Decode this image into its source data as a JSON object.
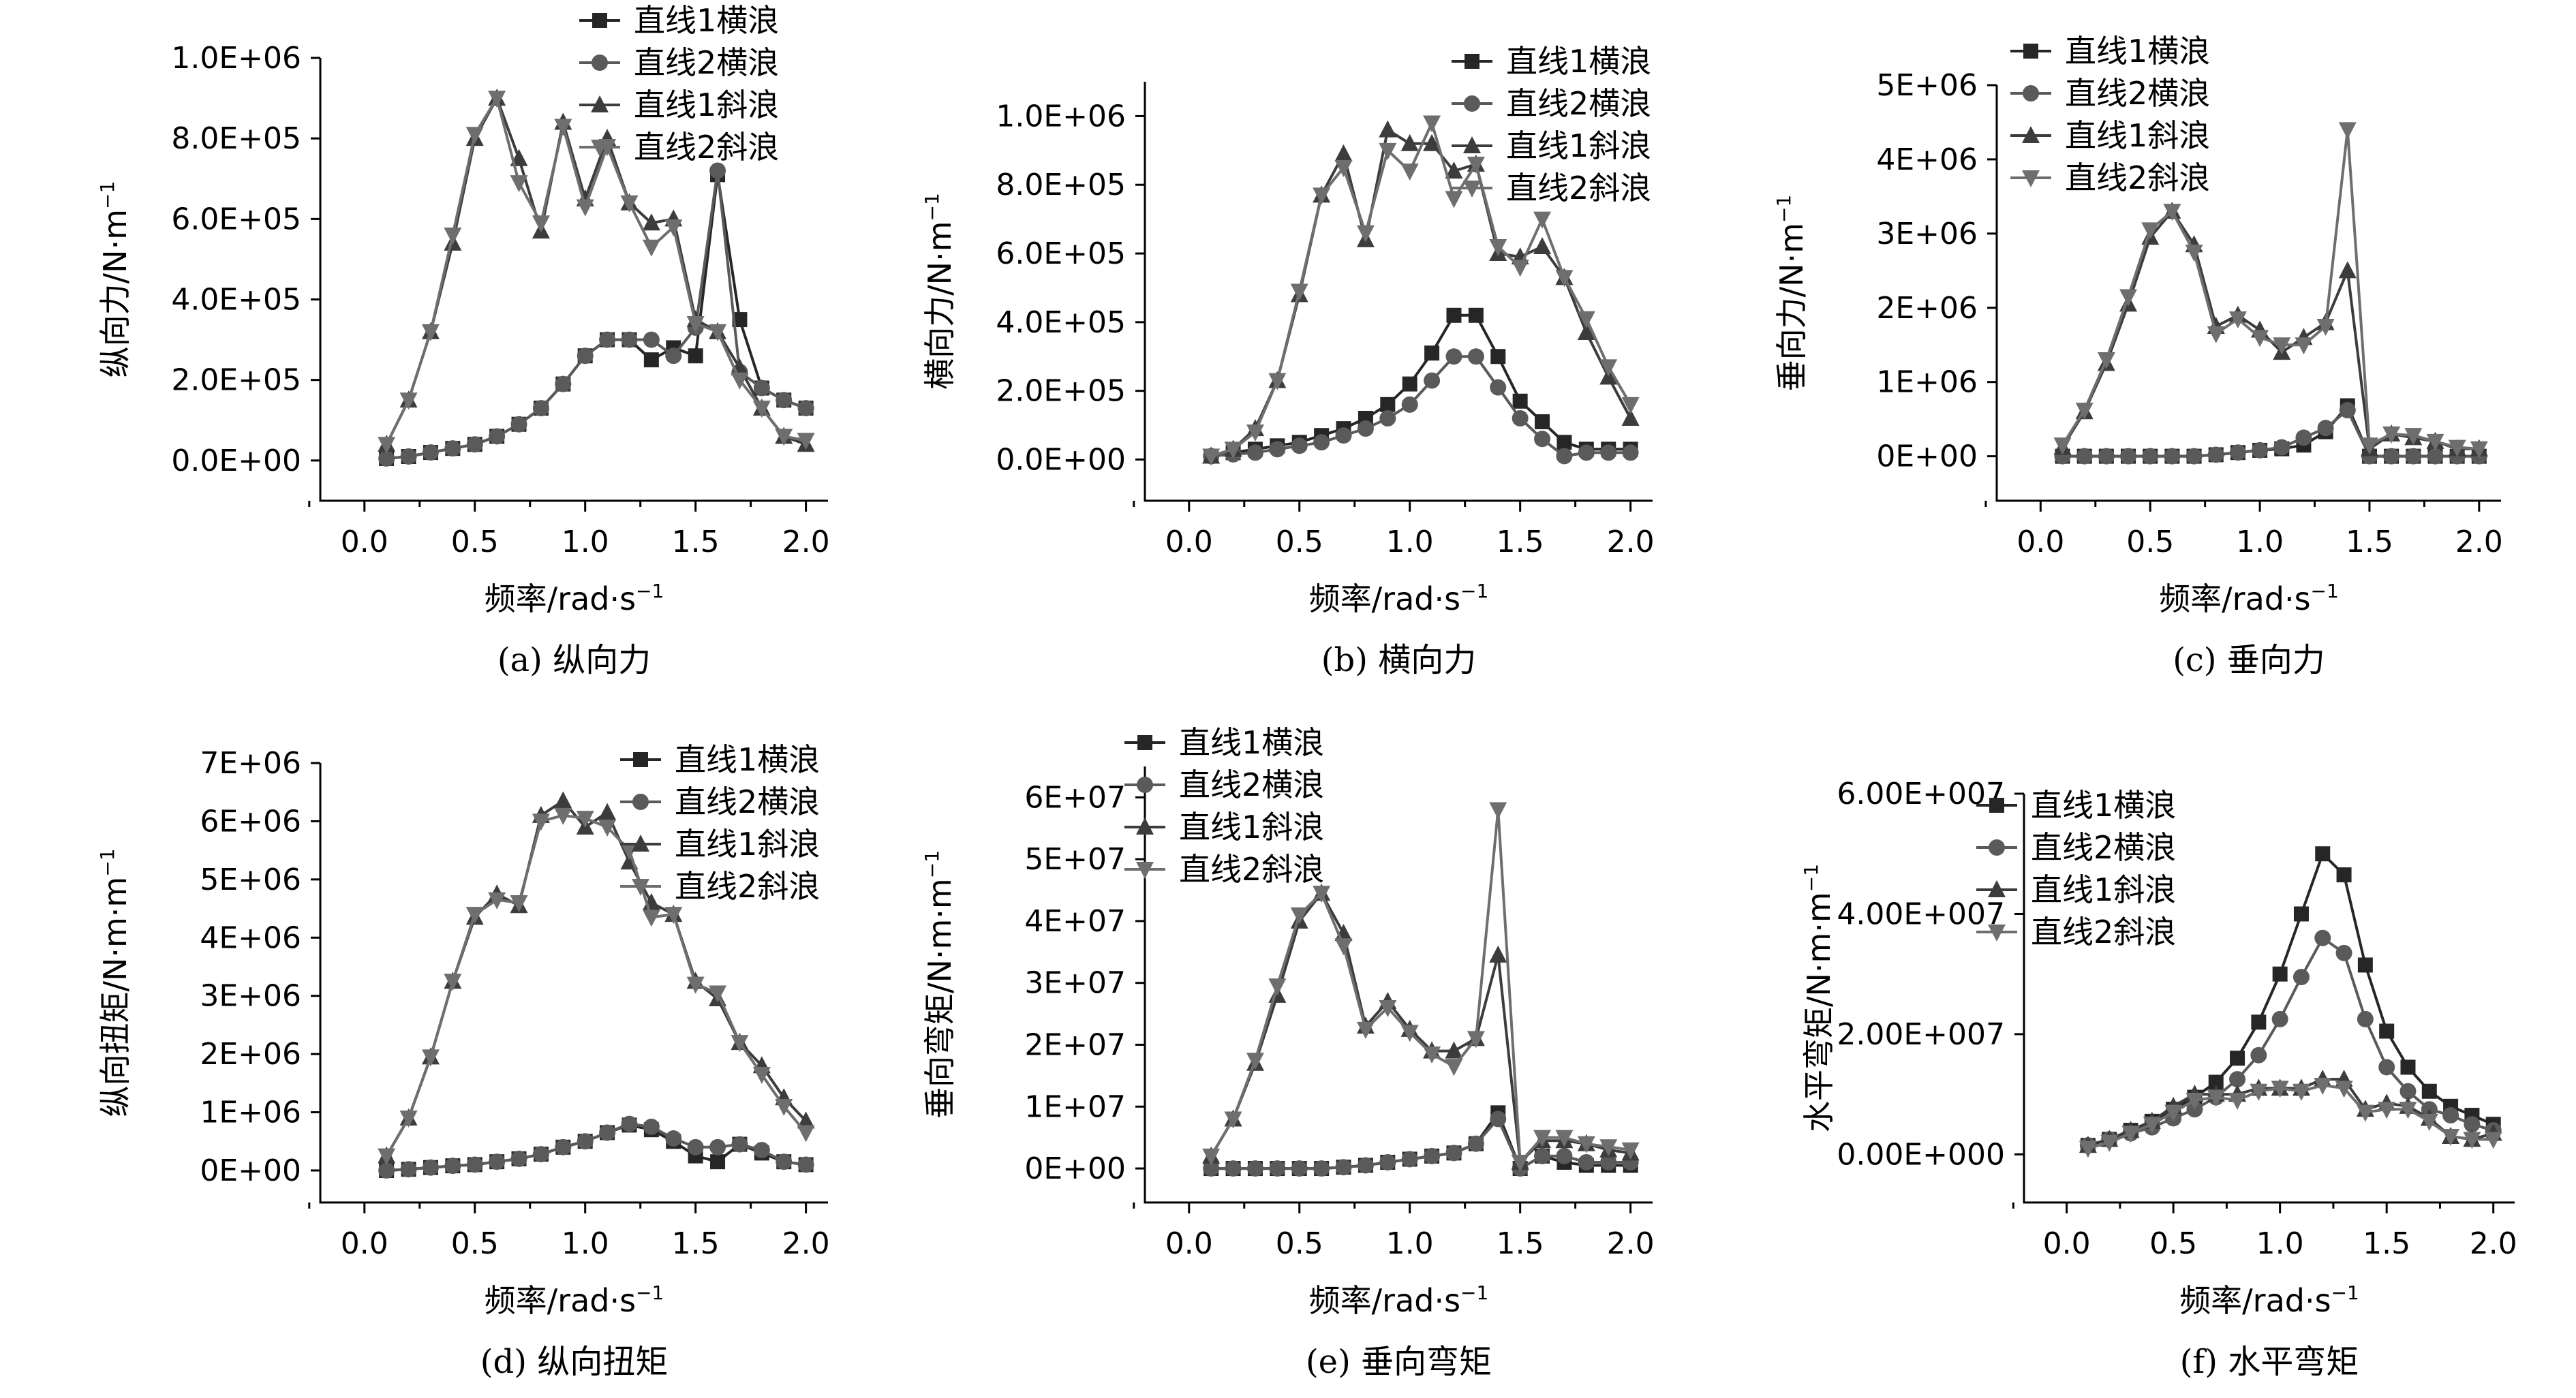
{
  "figure": {
    "x_label": "频率/rad·s",
    "x_label_sup": "−1",
    "legend": [
      "直线1横浪",
      "直线2横浪",
      "直线1斜浪",
      "直线2斜浪"
    ],
    "series_colors": [
      "#262626",
      "#5a5a5a",
      "#3c3c3c",
      "#6e6e6e"
    ],
    "markers": [
      "square",
      "circle",
      "triangle-up",
      "triangle-down"
    ]
  },
  "chart_data": [
    {
      "type": "line",
      "caption": "(a) 纵向力",
      "ylabel": "纵向力/N·m",
      "ylabel_sup": "−1",
      "xlim": [
        -0.2,
        2.1
      ],
      "ylim": [
        -100000.0,
        1000000.0
      ],
      "xticks": [
        0.0,
        0.5,
        1.0,
        1.5,
        2.0
      ],
      "xtick_labels": [
        "0.0",
        "0.5",
        "1.0",
        "1.5",
        "2.0"
      ],
      "yticks": [
        0,
        200000,
        400000,
        600000,
        800000,
        1000000
      ],
      "ytick_labels": [
        "0.0E+00",
        "2.0E+05",
        "4.0E+05",
        "6.0E+05",
        "8.0E+05",
        "1.0E+06"
      ],
      "x": [
        0.1,
        0.2,
        0.3,
        0.4,
        0.5,
        0.6,
        0.7,
        0.8,
        0.9,
        1.0,
        1.1,
        1.2,
        1.3,
        1.4,
        1.5,
        1.6,
        1.7,
        1.8,
        1.9,
        2.0
      ],
      "series": [
        {
          "name": "直线1横浪",
          "values": [
            5000,
            10000,
            20000,
            30000,
            40000,
            60000,
            90000,
            130000,
            190000,
            260000,
            300000,
            300000,
            250000,
            280000,
            260000,
            710000,
            350000,
            180000,
            150000,
            130000
          ]
        },
        {
          "name": "直线2横浪",
          "values": [
            5000,
            10000,
            20000,
            30000,
            40000,
            60000,
            90000,
            130000,
            190000,
            260000,
            300000,
            300000,
            300000,
            260000,
            330000,
            720000,
            220000,
            180000,
            150000,
            130000
          ]
        },
        {
          "name": "直线1斜浪",
          "values": [
            40000,
            150000,
            320000,
            540000,
            800000,
            900000,
            750000,
            570000,
            840000,
            650000,
            800000,
            640000,
            590000,
            600000,
            350000,
            320000,
            230000,
            130000,
            60000,
            40000
          ]
        },
        {
          "name": "直线2斜浪",
          "values": [
            40000,
            150000,
            320000,
            560000,
            810000,
            900000,
            690000,
            590000,
            830000,
            630000,
            780000,
            640000,
            530000,
            580000,
            340000,
            320000,
            200000,
            130000,
            60000,
            50000
          ]
        }
      ]
    },
    {
      "type": "line",
      "caption": "(b) 横向力",
      "ylabel": "横向力/N·m",
      "ylabel_sup": "−1",
      "xlim": [
        -0.2,
        2.1
      ],
      "ylim": [
        -120000.0,
        1100000.0
      ],
      "xticks": [
        0.0,
        0.5,
        1.0,
        1.5,
        2.0
      ],
      "xtick_labels": [
        "0.0",
        "0.5",
        "1.0",
        "1.5",
        "2.0"
      ],
      "yticks": [
        0,
        200000,
        400000,
        600000,
        800000,
        1000000
      ],
      "ytick_labels": [
        "0.0E+00",
        "2.0E+05",
        "4.0E+05",
        "6.0E+05",
        "8.0E+05",
        "1.0E+06"
      ],
      "x": [
        0.1,
        0.2,
        0.3,
        0.4,
        0.5,
        0.6,
        0.7,
        0.8,
        0.9,
        1.0,
        1.1,
        1.2,
        1.3,
        1.4,
        1.5,
        1.6,
        1.7,
        1.8,
        1.9,
        2.0
      ],
      "series": [
        {
          "name": "直线1横浪",
          "values": [
            10000,
            20000,
            30000,
            40000,
            50000,
            70000,
            90000,
            120000,
            160000,
            220000,
            310000,
            420000,
            420000,
            300000,
            170000,
            110000,
            50000,
            30000,
            30000,
            30000
          ]
        },
        {
          "name": "直线2横浪",
          "values": [
            10000,
            15000,
            20000,
            30000,
            40000,
            50000,
            70000,
            90000,
            120000,
            160000,
            230000,
            300000,
            300000,
            210000,
            120000,
            60000,
            10000,
            20000,
            20000,
            20000
          ]
        },
        {
          "name": "直线1斜浪",
          "values": [
            10000,
            30000,
            90000,
            230000,
            480000,
            770000,
            890000,
            640000,
            960000,
            920000,
            920000,
            840000,
            860000,
            600000,
            590000,
            620000,
            530000,
            370000,
            240000,
            120000
          ]
        },
        {
          "name": "直线2斜浪",
          "values": [
            10000,
            30000,
            80000,
            230000,
            490000,
            770000,
            850000,
            660000,
            900000,
            840000,
            980000,
            760000,
            860000,
            620000,
            560000,
            700000,
            530000,
            410000,
            270000,
            160000
          ]
        }
      ]
    },
    {
      "type": "line",
      "caption": "(c) 垂向力",
      "ylabel": "垂向力/N·m",
      "ylabel_sup": "−1",
      "xlim": [
        -0.2,
        2.1
      ],
      "ylim": [
        -600000.0,
        5000000.0
      ],
      "xticks": [
        0.0,
        0.5,
        1.0,
        1.5,
        2.0
      ],
      "xtick_labels": [
        "0.0",
        "0.5",
        "1.0",
        "1.5",
        "2.0"
      ],
      "yticks": [
        0,
        1000000,
        2000000,
        3000000,
        4000000,
        5000000
      ],
      "ytick_labels": [
        "0E+00",
        "1E+06",
        "2E+06",
        "3E+06",
        "4E+06",
        "5E+06"
      ],
      "x": [
        0.1,
        0.2,
        0.3,
        0.4,
        0.5,
        0.6,
        0.7,
        0.8,
        0.9,
        1.0,
        1.1,
        1.2,
        1.3,
        1.4,
        1.5,
        1.6,
        1.7,
        1.8,
        1.9,
        2.0
      ],
      "series": [
        {
          "name": "直线1横浪",
          "values": [
            0,
            0,
            0,
            0,
            0,
            0,
            0,
            20000,
            50000,
            80000,
            100000,
            150000,
            330000,
            680000,
            0,
            0,
            0,
            0,
            0,
            0
          ]
        },
        {
          "name": "直线2横浪",
          "values": [
            0,
            0,
            0,
            0,
            0,
            0,
            0,
            20000,
            50000,
            80000,
            120000,
            250000,
            380000,
            620000,
            0,
            0,
            0,
            0,
            0,
            0
          ]
        },
        {
          "name": "直线1斜浪",
          "values": [
            120000,
            600000,
            1250000,
            2050000,
            2950000,
            3300000,
            2850000,
            1750000,
            1900000,
            1700000,
            1400000,
            1600000,
            1800000,
            2500000,
            100000,
            300000,
            250000,
            200000,
            100000,
            100000
          ]
        },
        {
          "name": "直线2斜浪",
          "values": [
            150000,
            620000,
            1300000,
            2150000,
            3050000,
            3300000,
            2750000,
            1650000,
            1850000,
            1600000,
            1500000,
            1500000,
            1750000,
            4400000,
            150000,
            300000,
            280000,
            200000,
            120000,
            100000
          ]
        }
      ]
    },
    {
      "type": "line",
      "caption": "(d) 纵向扭矩",
      "ylabel": "纵向扭矩/N·m·m",
      "ylabel_sup": "−1",
      "xlim": [
        -0.2,
        2.1
      ],
      "ylim": [
        -550000.0,
        7000000.0
      ],
      "xticks": [
        0.0,
        0.5,
        1.0,
        1.5,
        2.0
      ],
      "xtick_labels": [
        "0.0",
        "0.5",
        "1.0",
        "1.5",
        "2.0"
      ],
      "yticks": [
        0,
        1000000,
        2000000,
        3000000,
        4000000,
        5000000,
        6000000,
        7000000
      ],
      "ytick_labels": [
        "0E+00",
        "1E+06",
        "2E+06",
        "3E+06",
        "4E+06",
        "5E+06",
        "6E+06",
        "7E+06"
      ],
      "x": [
        0.1,
        0.2,
        0.3,
        0.4,
        0.5,
        0.6,
        0.7,
        0.8,
        0.9,
        1.0,
        1.1,
        1.2,
        1.3,
        1.4,
        1.5,
        1.6,
        1.7,
        1.8,
        1.9,
        2.0
      ],
      "series": [
        {
          "name": "直线1横浪",
          "values": [
            0,
            20000,
            50000,
            80000,
            100000,
            150000,
            200000,
            280000,
            400000,
            500000,
            650000,
            780000,
            700000,
            500000,
            250000,
            150000,
            450000,
            300000,
            150000,
            100000
          ]
        },
        {
          "name": "直线2横浪",
          "values": [
            0,
            20000,
            50000,
            80000,
            100000,
            150000,
            200000,
            280000,
            400000,
            500000,
            650000,
            800000,
            750000,
            550000,
            400000,
            400000,
            450000,
            350000,
            150000,
            100000
          ]
        },
        {
          "name": "直线1斜浪",
          "values": [
            250000,
            900000,
            1950000,
            3250000,
            4350000,
            4750000,
            4550000,
            6100000,
            6350000,
            5900000,
            6150000,
            5300000,
            4600000,
            4400000,
            3250000,
            2950000,
            2200000,
            1800000,
            1250000,
            850000
          ]
        },
        {
          "name": "直线2斜浪",
          "values": [
            250000,
            900000,
            1950000,
            3250000,
            4400000,
            4650000,
            4600000,
            6000000,
            6100000,
            6050000,
            5900000,
            5500000,
            4350000,
            4400000,
            3200000,
            3050000,
            2200000,
            1650000,
            1100000,
            650000
          ]
        }
      ]
    },
    {
      "type": "line",
      "caption": "(e) 垂向弯矩",
      "ylabel": "垂向弯矩/N·m·m",
      "ylabel_sup": "−1",
      "xlim": [
        -0.2,
        2.1
      ],
      "ylim": [
        -5500000.0,
        65000000.0
      ],
      "xticks": [
        0.0,
        0.5,
        1.0,
        1.5,
        2.0
      ],
      "xtick_labels": [
        "0.0",
        "0.5",
        "1.0",
        "1.5",
        "2.0"
      ],
      "yticks": [
        0,
        10000000,
        20000000,
        30000000,
        40000000,
        50000000,
        60000000
      ],
      "ytick_labels": [
        "0E+00",
        "1E+07",
        "2E+07",
        "3E+07",
        "4E+07",
        "5E+07",
        "6E+07"
      ],
      "x": [
        0.1,
        0.2,
        0.3,
        0.4,
        0.5,
        0.6,
        0.7,
        0.8,
        0.9,
        1.0,
        1.1,
        1.2,
        1.3,
        1.4,
        1.5,
        1.6,
        1.7,
        1.8,
        1.9,
        2.0
      ],
      "series": [
        {
          "name": "直线1横浪",
          "values": [
            0,
            0,
            0,
            0,
            0,
            0,
            200000,
            500000,
            1000000,
            1500000,
            2000000,
            2500000,
            4000000,
            9000000,
            0,
            2000000,
            1000000,
            500000,
            500000,
            500000
          ]
        },
        {
          "name": "直线2横浪",
          "values": [
            0,
            0,
            0,
            0,
            0,
            0,
            200000,
            500000,
            1000000,
            1500000,
            2000000,
            2500000,
            4000000,
            8000000,
            0,
            2000000,
            2000000,
            1000000,
            1000000,
            1000000
          ]
        },
        {
          "name": "直线1斜浪",
          "values": [
            2000000,
            8000000,
            17000000,
            28000000,
            40000000,
            44500000,
            38000000,
            23000000,
            27000000,
            22500000,
            19000000,
            19000000,
            21000000,
            34500000,
            1000000,
            4500000,
            4500000,
            4000000,
            3000000,
            2500000
          ]
        },
        {
          "name": "直线2斜浪",
          "values": [
            2000000,
            8000000,
            17500000,
            29500000,
            41000000,
            44500000,
            36000000,
            22500000,
            26000000,
            22000000,
            18500000,
            16500000,
            21000000,
            58000000,
            1000000,
            5000000,
            5000000,
            4000000,
            3500000,
            3000000
          ]
        }
      ]
    },
    {
      "type": "line",
      "caption": "(f) 水平弯矩",
      "ylabel": "水平弯矩/N·m·m",
      "ylabel_sup": "−1",
      "xlim": [
        -0.2,
        2.1
      ],
      "ylim": [
        -8000000.0,
        60000000.0
      ],
      "xticks": [
        0.0,
        0.5,
        1.0,
        1.5,
        2.0
      ],
      "xtick_labels": [
        "0.0",
        "0.5",
        "1.0",
        "1.5",
        "2.0"
      ],
      "yticks": [
        0,
        20000000,
        40000000,
        60000000
      ],
      "ytick_labels": [
        "0.00E+000",
        "2.00E+007",
        "4.00E+007",
        "6.00E+007"
      ],
      "x": [
        0.1,
        0.2,
        0.3,
        0.4,
        0.5,
        0.6,
        0.7,
        0.8,
        0.9,
        1.0,
        1.1,
        1.2,
        1.3,
        1.4,
        1.5,
        1.6,
        1.7,
        1.8,
        1.9,
        2.0
      ],
      "series": [
        {
          "name": "直线1横浪",
          "values": [
            1500000,
            2500000,
            4000000,
            5500000,
            7500000,
            9500000,
            12000000,
            16000000,
            22000000,
            30000000,
            40000000,
            50000000,
            46500000,
            31500000,
            20500000,
            14500000,
            10500000,
            8000000,
            6500000,
            5000000
          ]
        },
        {
          "name": "直线2横浪",
          "values": [
            1500000,
            2500000,
            3500000,
            4500000,
            6000000,
            7500000,
            9500000,
            12500000,
            16500000,
            22500000,
            29500000,
            36000000,
            33500000,
            22500000,
            14500000,
            10500000,
            7500000,
            6500000,
            5000000,
            4000000
          ]
        },
        {
          "name": "直线1斜浪",
          "values": [
            1500000,
            2500000,
            4000000,
            5500000,
            8000000,
            10000000,
            10000000,
            10000000,
            11000000,
            11000000,
            11000000,
            12500000,
            12500000,
            7500000,
            8500000,
            8000000,
            6000000,
            3000000,
            2500000,
            3500000
          ]
        },
        {
          "name": "直线2斜浪",
          "values": [
            1000000,
            2000000,
            3500000,
            5000000,
            7000000,
            9000000,
            9500000,
            9000000,
            10500000,
            11000000,
            10500000,
            11500000,
            11000000,
            7000000,
            7500000,
            7500000,
            5500000,
            3000000,
            2500000,
            2500000
          ]
        }
      ]
    }
  ]
}
